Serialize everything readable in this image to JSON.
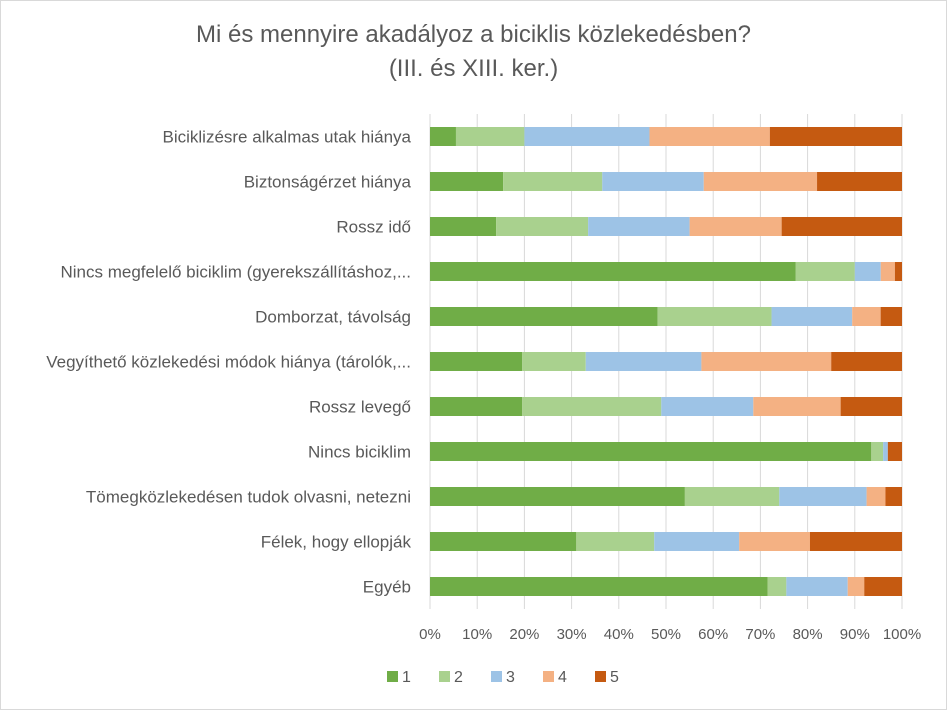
{
  "chart_data": {
    "type": "bar",
    "orientation": "horizontal",
    "stacked": "percent",
    "title": "Mi és mennyire akadályoz a biciklis közlekedésben?",
    "subtitle": "(III. és XIII. ker.)",
    "xlabel": "",
    "ylabel": "",
    "xlim": [
      0,
      100
    ],
    "x_ticks": [
      "0%",
      "10%",
      "20%",
      "30%",
      "40%",
      "50%",
      "60%",
      "70%",
      "80%",
      "90%",
      "100%"
    ],
    "grid": "vertical",
    "legend": "bottom",
    "categories": [
      "Biciklizésre alkalmas utak hiánya",
      "Biztonságérzet hiánya",
      "Rossz idő",
      "Nincs megfelelő biciklim (gyerekszállításhoz,...",
      "Domborzat, távolság",
      "Vegyíthető közlekedési módok hiánya (tárolók,...",
      "Rossz levegő",
      "Nincs biciklim",
      "Tömegközlekedésen tudok olvasni, netezni",
      "Félek, hogy ellopják",
      "Egyéb"
    ],
    "series": [
      {
        "name": "1",
        "color": "#70ad47",
        "values": [
          5.5,
          15.5,
          14,
          77.5,
          48,
          19.5,
          19.5,
          93.5,
          54,
          31,
          71.5
        ]
      },
      {
        "name": "2",
        "color": "#a9d18e",
        "values": [
          14.5,
          21,
          19.5,
          12.5,
          24,
          13.5,
          29.5,
          2.5,
          20,
          16.5,
          4
        ]
      },
      {
        "name": "3",
        "color": "#9dc3e6",
        "values": [
          26.5,
          21.5,
          21.5,
          5.5,
          17,
          24.5,
          19.5,
          1,
          18.5,
          18,
          13
        ]
      },
      {
        "name": "4",
        "color": "#f4b183",
        "values": [
          25.5,
          24,
          19.5,
          3,
          6,
          27.5,
          18.5,
          0,
          4,
          15,
          3.5
        ]
      },
      {
        "name": "5",
        "color": "#c55a11",
        "values": [
          28,
          18,
          25.5,
          1.5,
          4.5,
          15,
          13,
          3,
          3.5,
          19.5,
          8
        ]
      }
    ]
  }
}
